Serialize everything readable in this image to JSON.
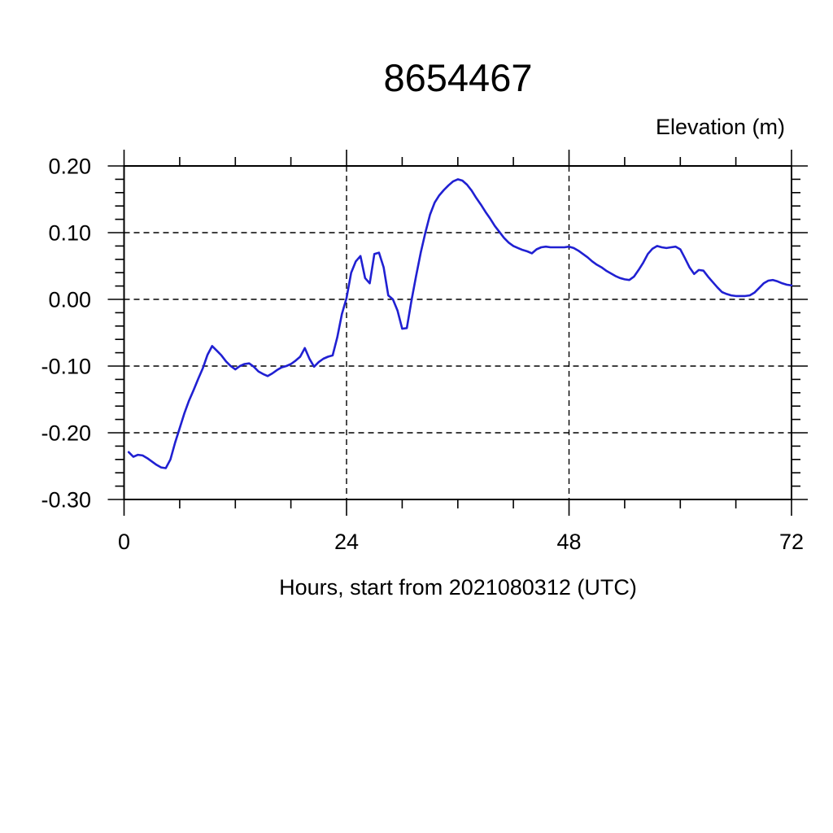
{
  "chart_data": {
    "type": "line",
    "title": "8654467",
    "ylabel": "Elevation (m)",
    "xlabel": "Hours, start from 2021080312 (UTC)",
    "xlim": [
      0,
      72
    ],
    "ylim": [
      -0.3,
      0.2
    ],
    "xticks": {
      "major": [
        0,
        24,
        48,
        72
      ],
      "labels": [
        "0",
        "24",
        "48",
        "72"
      ],
      "minor_step": 6
    },
    "yticks": {
      "major": [
        0.2,
        0.1,
        0.0,
        -0.1,
        -0.2,
        -0.3
      ],
      "labels": [
        "0.20",
        "0.10",
        "0.00",
        "-0.10",
        "-0.20",
        "-0.30"
      ],
      "minor_step": 0.02
    },
    "grid": {
      "x": [
        24,
        48
      ],
      "y": [
        0.1,
        0.0,
        -0.1,
        -0.2
      ],
      "style": "dashed"
    },
    "line_color": "#2020d2",
    "frame_color": "#000000",
    "background_color": "#ffffff",
    "series": [
      {
        "name": "elevation",
        "x_start": 0.5,
        "x_step": 0.5,
        "values": [
          -0.229,
          -0.236,
          -0.233,
          -0.234,
          -0.238,
          -0.243,
          -0.248,
          -0.252,
          -0.253,
          -0.24,
          -0.215,
          -0.193,
          -0.171,
          -0.152,
          -0.136,
          -0.119,
          -0.103,
          -0.083,
          -0.07,
          -0.077,
          -0.084,
          -0.093,
          -0.1,
          -0.105,
          -0.1,
          -0.097,
          -0.096,
          -0.101,
          -0.108,
          -0.112,
          -0.115,
          -0.111,
          -0.106,
          -0.102,
          -0.1,
          -0.097,
          -0.092,
          -0.086,
          -0.073,
          -0.089,
          -0.101,
          -0.094,
          -0.089,
          -0.086,
          -0.084,
          -0.057,
          -0.022,
          0.002,
          0.04,
          0.057,
          0.065,
          0.032,
          0.024,
          0.068,
          0.07,
          0.048,
          0.006,
          0.0,
          -0.017,
          -0.044,
          -0.043,
          -0.002,
          0.035,
          0.07,
          0.1,
          0.127,
          0.145,
          0.156,
          0.164,
          0.171,
          0.177,
          0.18,
          0.178,
          0.172,
          0.163,
          0.152,
          0.142,
          0.131,
          0.121,
          0.11,
          0.101,
          0.092,
          0.085,
          0.08,
          0.077,
          0.074,
          0.072,
          0.069,
          0.075,
          0.078,
          0.079,
          0.078,
          0.078,
          0.078,
          0.078,
          0.079,
          0.077,
          0.073,
          0.068,
          0.063,
          0.057,
          0.052,
          0.048,
          0.043,
          0.039,
          0.035,
          0.032,
          0.03,
          0.029,
          0.034,
          0.044,
          0.055,
          0.068,
          0.076,
          0.08,
          0.078,
          0.077,
          0.078,
          0.079,
          0.075,
          0.062,
          0.048,
          0.038,
          0.044,
          0.043,
          0.034,
          0.026,
          0.018,
          0.011,
          0.008,
          0.006,
          0.005,
          0.005,
          0.005,
          0.006,
          0.01,
          0.017,
          0.024,
          0.028,
          0.029,
          0.027,
          0.024,
          0.022,
          0.021
        ]
      }
    ]
  }
}
